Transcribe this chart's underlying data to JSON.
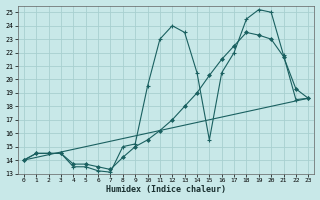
{
  "xlabel": "Humidex (Indice chaleur)",
  "bg_color": "#c8e8e8",
  "grid_color": "#a8d0d0",
  "line_color": "#1a6060",
  "xlim": [
    -0.5,
    23.5
  ],
  "ylim": [
    13,
    25.5
  ],
  "xticks": [
    0,
    1,
    2,
    3,
    4,
    5,
    6,
    7,
    8,
    9,
    10,
    11,
    12,
    13,
    14,
    15,
    16,
    17,
    18,
    19,
    20,
    21,
    22,
    23
  ],
  "yticks": [
    13,
    14,
    15,
    16,
    17,
    18,
    19,
    20,
    21,
    22,
    23,
    24,
    25
  ],
  "line1_x": [
    0,
    1,
    2,
    3,
    4,
    5,
    6,
    7,
    8,
    9,
    10,
    11,
    12,
    13,
    14,
    15,
    16,
    17,
    18,
    19,
    20,
    21,
    22,
    23
  ],
  "line1_y": [
    14.0,
    14.5,
    14.5,
    14.5,
    13.5,
    13.5,
    13.2,
    13.1,
    15.0,
    15.2,
    19.5,
    23.0,
    24.0,
    23.5,
    20.5,
    15.5,
    20.5,
    22.0,
    24.5,
    25.2,
    25.0,
    21.8,
    18.5,
    18.6
  ],
  "line2_x": [
    0,
    23
  ],
  "line2_y": [
    14.0,
    18.6
  ],
  "line3_x": [
    0,
    1,
    2,
    3,
    4,
    5,
    6,
    7,
    8,
    9,
    10,
    11,
    12,
    13,
    14,
    15,
    16,
    17,
    18,
    19,
    20,
    21,
    22,
    23
  ],
  "line3_y": [
    14.0,
    14.5,
    14.5,
    14.5,
    13.7,
    13.7,
    13.5,
    13.3,
    14.2,
    15.0,
    15.5,
    16.2,
    17.0,
    18.0,
    19.0,
    20.3,
    21.5,
    22.5,
    23.5,
    23.3,
    23.0,
    21.7,
    19.3,
    18.6
  ]
}
